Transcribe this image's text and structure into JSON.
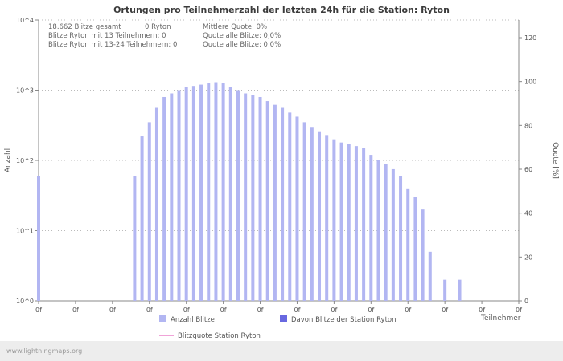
{
  "page": {
    "footer_link": "www.lightningmaps.org"
  },
  "stats": {
    "row1": {
      "c1": "18.662 Blitze gesamt",
      "c2": "0 Ryton",
      "c3": "Mittlere Quote: 0%"
    },
    "row2": {
      "c1": "Blitze Ryton mit 13 Teilnehmern: 0",
      "c3": "Quote alle Blitze: 0,0%"
    },
    "row3": {
      "c1": "Blitze Ryton mit 13-24 Teilnehmern: 0",
      "c3": "Quote alle Blitze: 0,0%"
    }
  },
  "chart_data": {
    "type": "bar",
    "title": "Ortungen pro Teilnehmerzahl der letzten 24h für die Station: Ryton",
    "xlabel": "Teilnehmer",
    "ylabel_left": "Anzahl",
    "ylabel_right": "Quote [%]",
    "y_left_scale": "log",
    "y_left_ticks": [
      "10^0",
      "10^1",
      "10^2",
      "10^3",
      "10^4"
    ],
    "y_left_range_exponents": [
      0,
      4
    ],
    "y_right_ticks": [
      0,
      20,
      40,
      60,
      80,
      100,
      120
    ],
    "y_right_max": 120,
    "x_range": [
      0,
      65
    ],
    "x_tick_step": 5,
    "x_ticks": [
      "0f",
      "0f",
      "0f",
      "0f",
      "0f",
      "0f",
      "0f",
      "0f",
      "0f",
      "0f",
      "0f",
      "0f",
      "0f",
      "0f"
    ],
    "grid": "dotted-horizontal",
    "legend_position": "bottom",
    "series": [
      {
        "name": "Anzahl Blitze",
        "color": "#b2b6f2",
        "swatch": "square",
        "points": [
          [
            0,
            60
          ],
          [
            13,
            60
          ],
          [
            14,
            220
          ],
          [
            15,
            350
          ],
          [
            16,
            560
          ],
          [
            17,
            800
          ],
          [
            18,
            900
          ],
          [
            19,
            1000
          ],
          [
            20,
            1100
          ],
          [
            21,
            1150
          ],
          [
            22,
            1200
          ],
          [
            23,
            1250
          ],
          [
            24,
            1300
          ],
          [
            25,
            1250
          ],
          [
            26,
            1100
          ],
          [
            27,
            1000
          ],
          [
            28,
            900
          ],
          [
            29,
            850
          ],
          [
            30,
            800
          ],
          [
            31,
            700
          ],
          [
            32,
            620
          ],
          [
            33,
            560
          ],
          [
            34,
            480
          ],
          [
            35,
            420
          ],
          [
            36,
            350
          ],
          [
            37,
            300
          ],
          [
            38,
            260
          ],
          [
            39,
            230
          ],
          [
            40,
            200
          ],
          [
            41,
            180
          ],
          [
            42,
            170
          ],
          [
            43,
            160
          ],
          [
            44,
            150
          ],
          [
            45,
            120
          ],
          [
            46,
            100
          ],
          [
            47,
            90
          ],
          [
            48,
            75
          ],
          [
            49,
            60
          ],
          [
            50,
            40
          ],
          [
            51,
            30
          ],
          [
            52,
            20
          ],
          [
            53,
            5
          ],
          [
            55,
            2
          ],
          [
            57,
            2
          ]
        ]
      },
      {
        "name": "Davon Blitze der Station Ryton",
        "color": "#6868e0",
        "swatch": "square",
        "points": []
      },
      {
        "name": "Blitzquote Station Ryton",
        "color": "#f0a3d8",
        "swatch": "line",
        "points": []
      }
    ]
  }
}
